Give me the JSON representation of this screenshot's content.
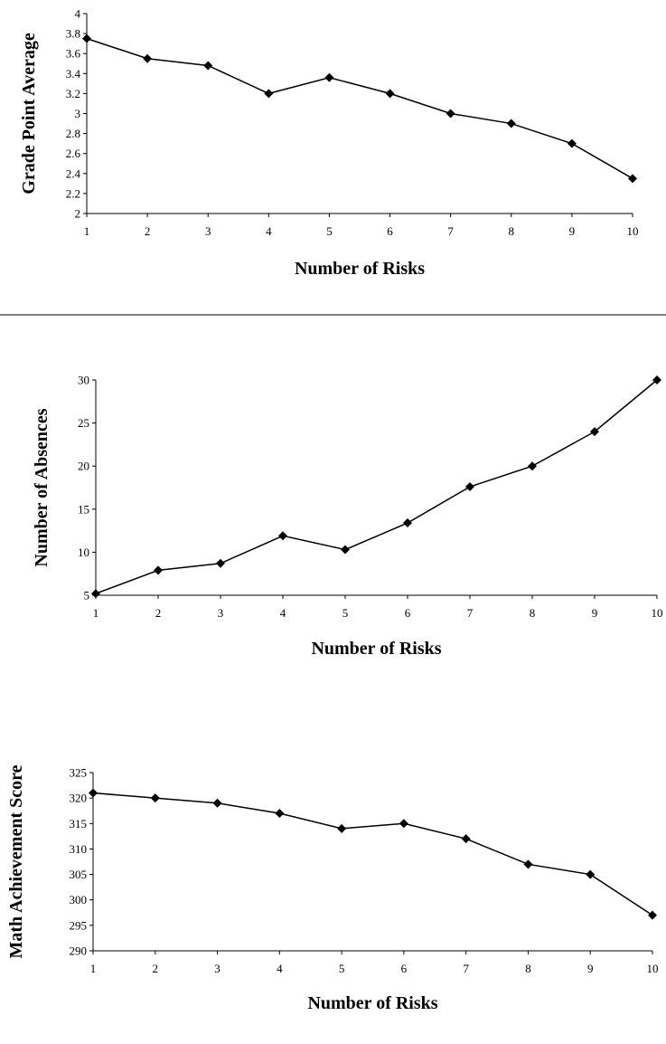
{
  "chart_data": [
    {
      "type": "line",
      "xlabel": "Number of Risks",
      "ylabel": "Grade Point Average",
      "x": [
        1,
        2,
        3,
        4,
        5,
        6,
        7,
        8,
        9,
        10
      ],
      "y": [
        3.75,
        3.55,
        3.48,
        3.2,
        3.36,
        3.2,
        3.0,
        2.9,
        2.7,
        2.35
      ],
      "xticks": [
        "1",
        "2",
        "3",
        "4",
        "5",
        "6",
        "7",
        "8",
        "9",
        "10"
      ],
      "yticks": [
        "2",
        "2.2",
        "2.4",
        "2.6",
        "2.8",
        "3",
        "3.2",
        "3.4",
        "3.6",
        "3.8",
        "4"
      ],
      "ylim": [
        2,
        4
      ],
      "marker": "diamond",
      "grid": false
    },
    {
      "type": "line",
      "xlabel": "Number of Risks",
      "ylabel": "Number of Absences",
      "x": [
        1,
        2,
        3,
        4,
        5,
        6,
        7,
        8,
        9,
        10
      ],
      "y": [
        5.2,
        7.9,
        8.7,
        11.9,
        10.3,
        13.4,
        17.6,
        20,
        24,
        30
      ],
      "xticks": [
        "1",
        "2",
        "3",
        "4",
        "5",
        "6",
        "7",
        "8",
        "9",
        "10"
      ],
      "yticks": [
        "5",
        "10",
        "15",
        "20",
        "25",
        "30"
      ],
      "ylim": [
        5,
        30
      ],
      "marker": "diamond",
      "grid": false
    },
    {
      "type": "line",
      "xlabel": "Number of Risks",
      "ylabel": "Math Achievement Score",
      "x": [
        1,
        2,
        3,
        4,
        5,
        6,
        7,
        8,
        9,
        10
      ],
      "y": [
        321,
        320,
        319,
        317,
        314,
        315,
        312,
        307,
        305,
        297
      ],
      "xticks": [
        "1",
        "2",
        "3",
        "4",
        "5",
        "6",
        "7",
        "8",
        "9",
        "10"
      ],
      "yticks": [
        "290",
        "295",
        "300",
        "305",
        "310",
        "315",
        "320",
        "325"
      ],
      "ylim": [
        290,
        325
      ],
      "marker": "diamond",
      "grid": false
    }
  ]
}
